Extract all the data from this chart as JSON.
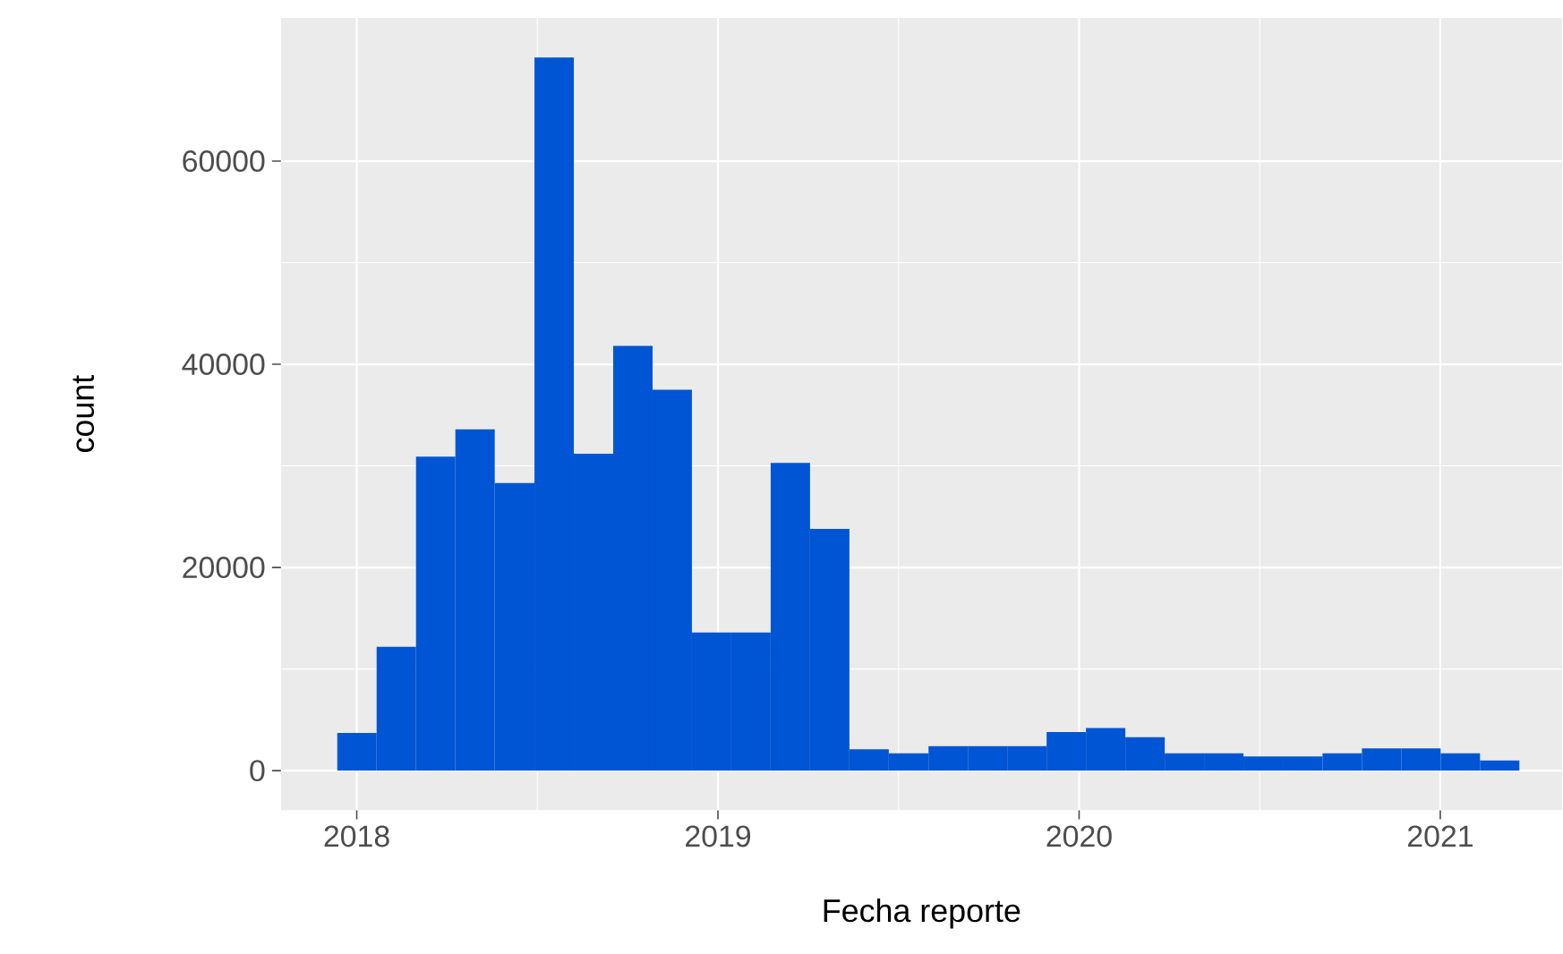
{
  "chart_data": {
    "type": "histogram",
    "xlabel": "Fecha reporte",
    "ylabel": "count",
    "color": "#0055d4",
    "bins": [
      2017.946,
      2018.055,
      2018.164,
      2018.273,
      2018.382,
      2018.492,
      2018.601,
      2018.71,
      2018.819,
      2018.928,
      2019.037,
      2019.146,
      2019.255,
      2019.364,
      2019.473,
      2019.583,
      2019.692,
      2019.801,
      2019.91,
      2020.019,
      2020.128,
      2020.237,
      2020.346,
      2020.455,
      2020.564,
      2020.674,
      2020.783,
      2020.892,
      2021.001,
      2021.11,
      2021.219
    ],
    "values": [
      3700,
      12200,
      30900,
      33600,
      28300,
      70200,
      31200,
      41800,
      37500,
      13600,
      13600,
      30300,
      23800,
      2100,
      1700,
      2400,
      2400,
      2400,
      3800,
      4200,
      3300,
      1700,
      1700,
      1400,
      1400,
      1700,
      2200,
      2200,
      1700,
      1000
    ],
    "xlim": [
      2017.79,
      2021.337
    ],
    "ylim": [
      -3900,
      74100
    ],
    "xticks": [
      2018,
      2019,
      2020,
      2021
    ],
    "yticks": [
      0,
      20000,
      40000,
      60000
    ],
    "grid": true
  }
}
